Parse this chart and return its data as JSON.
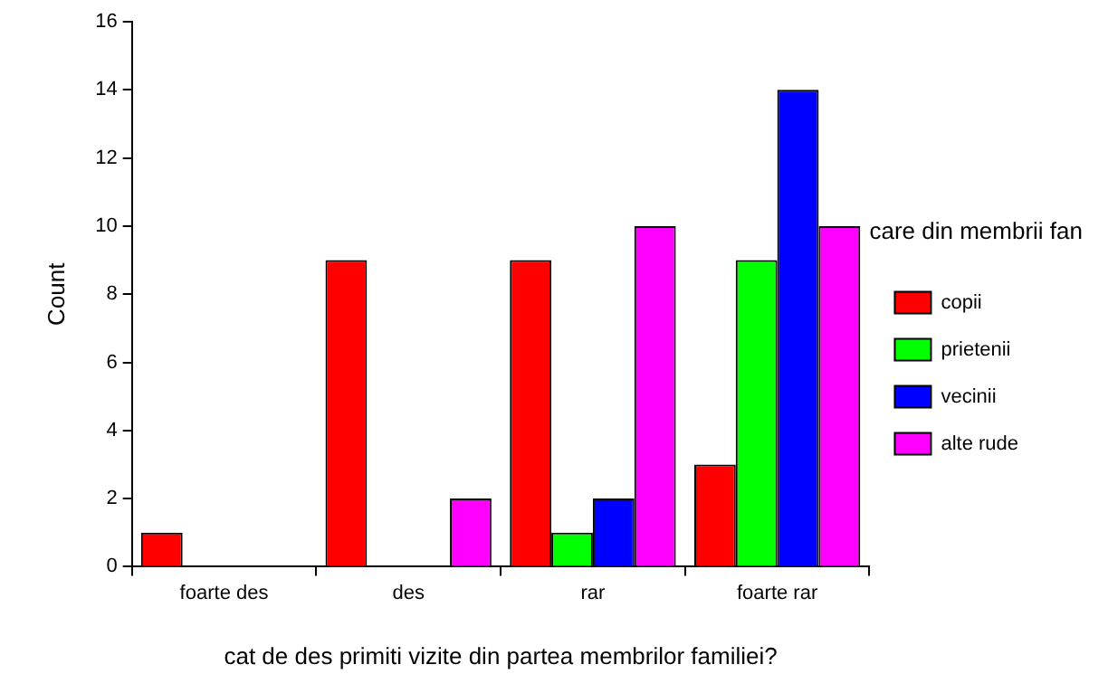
{
  "chart_data": {
    "type": "bar",
    "xlabel": "cat de des primiti vizite din partea membrilor familiei?",
    "ylabel": "Count",
    "legend_title": "care din membrii fan",
    "categories": [
      "foarte des",
      "des",
      "rar",
      "foarte rar"
    ],
    "series": [
      {
        "name": "copii",
        "color": "#ff0000",
        "values": [
          1,
          9,
          9,
          3
        ]
      },
      {
        "name": "prietenii",
        "color": "#00ff00",
        "values": [
          0,
          0,
          1,
          9
        ]
      },
      {
        "name": "vecinii",
        "color": "#0000ff",
        "values": [
          0,
          0,
          2,
          14
        ]
      },
      {
        "name": "alte rude",
        "color": "#ff00ff",
        "values": [
          0,
          2,
          10,
          10
        ]
      }
    ],
    "ylim": [
      0,
      16
    ],
    "yticks": [
      0,
      2,
      4,
      6,
      8,
      10,
      12,
      14,
      16
    ],
    "grid": false,
    "legend": "right"
  }
}
